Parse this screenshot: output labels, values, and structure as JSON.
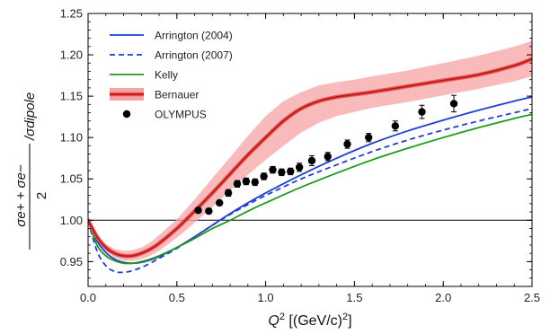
{
  "chart_data": {
    "type": "line",
    "xlabel_main": "Q",
    "xlabel_sup": "2",
    "xlabel_unit": " [(GeV/c)",
    "xlabel_unit_sup": "2",
    "xlabel_close": "]",
    "ylabel_numerator": "σe+ + σe−",
    "ylabel_denominator": "2",
    "ylabel_divisor": "/σdipole",
    "xlim": [
      0,
      2.5
    ],
    "ylim": [
      0.92,
      1.25
    ],
    "x_ticks": [
      "0.0",
      "0.5",
      "1.0",
      "1.5",
      "2.0",
      "2.5"
    ],
    "x_tick_values": [
      0,
      0.5,
      1.0,
      1.5,
      2.0,
      2.5
    ],
    "y_ticks": [
      "0.95",
      "1.00",
      "1.05",
      "1.10",
      "1.15",
      "1.20",
      "1.25"
    ],
    "y_tick_values": [
      0.95,
      1.0,
      1.05,
      1.1,
      1.15,
      1.2,
      1.25
    ],
    "reference_line": 1.0,
    "legend_position": "top-left",
    "series": [
      {
        "name": "Arrington (2004)",
        "color": "#1d3fd6",
        "style": "solid",
        "x": [
          0,
          0.05,
          0.1,
          0.15,
          0.2,
          0.25,
          0.3,
          0.35,
          0.4,
          0.5,
          0.6,
          0.7,
          0.8,
          0.9,
          1.0,
          1.2,
          1.4,
          1.6,
          1.8,
          2.0,
          2.2,
          2.4,
          2.5
        ],
        "values": [
          1.0,
          0.975,
          0.961,
          0.953,
          0.949,
          0.948,
          0.949,
          0.952,
          0.956,
          0.967,
          0.98,
          0.994,
          1.008,
          1.021,
          1.033,
          1.055,
          1.075,
          1.093,
          1.108,
          1.121,
          1.133,
          1.144,
          1.149
        ]
      },
      {
        "name": "Arrington (2007)",
        "color": "#1d3fd6",
        "style": "dashed",
        "x": [
          0,
          0.05,
          0.1,
          0.15,
          0.2,
          0.25,
          0.3,
          0.35,
          0.4,
          0.5,
          0.6,
          0.7,
          0.8,
          0.9,
          1.0,
          1.2,
          1.4,
          1.6,
          1.8,
          2.0,
          2.2,
          2.4,
          2.5
        ],
        "values": [
          1.0,
          0.963,
          0.945,
          0.938,
          0.937,
          0.939,
          0.943,
          0.948,
          0.954,
          0.966,
          0.98,
          0.994,
          1.007,
          1.019,
          1.03,
          1.05,
          1.067,
          1.083,
          1.097,
          1.109,
          1.12,
          1.13,
          1.135
        ]
      },
      {
        "name": "Kelly",
        "color": "#1f9a1f",
        "style": "solid",
        "x": [
          0,
          0.05,
          0.1,
          0.15,
          0.2,
          0.25,
          0.3,
          0.35,
          0.4,
          0.5,
          0.6,
          0.7,
          0.8,
          0.9,
          1.0,
          1.2,
          1.4,
          1.6,
          1.8,
          2.0,
          2.2,
          2.4,
          2.5
        ],
        "values": [
          1.0,
          0.97,
          0.957,
          0.951,
          0.948,
          0.948,
          0.95,
          0.953,
          0.957,
          0.967,
          0.978,
          0.99,
          1.0,
          1.011,
          1.021,
          1.04,
          1.057,
          1.073,
          1.087,
          1.1,
          1.112,
          1.123,
          1.128
        ]
      },
      {
        "name": "Bernauer",
        "color": "#c81414",
        "band_color": "#f6a3a3",
        "core_color": "#e05a5a",
        "style": "band",
        "x": [
          0,
          0.05,
          0.1,
          0.15,
          0.2,
          0.25,
          0.3,
          0.35,
          0.4,
          0.5,
          0.6,
          0.7,
          0.8,
          0.9,
          1.0,
          1.1,
          1.2,
          1.3,
          1.4,
          1.5,
          1.6,
          1.8,
          2.0,
          2.2,
          2.4,
          2.5
        ],
        "values": [
          1.0,
          0.98,
          0.967,
          0.96,
          0.957,
          0.957,
          0.96,
          0.965,
          0.972,
          0.99,
          1.011,
          1.033,
          1.056,
          1.079,
          1.1,
          1.12,
          1.135,
          1.144,
          1.149,
          1.152,
          1.155,
          1.162,
          1.169,
          1.176,
          1.187,
          1.195
        ],
        "band_low": [
          1.0,
          0.977,
          0.963,
          0.955,
          0.951,
          0.951,
          0.953,
          0.957,
          0.963,
          0.979,
          0.997,
          1.016,
          1.036,
          1.055,
          1.073,
          1.09,
          1.106,
          1.118,
          1.126,
          1.131,
          1.136,
          1.143,
          1.151,
          1.159,
          1.168,
          1.174
        ],
        "band_high": [
          1.0,
          0.983,
          0.971,
          0.965,
          0.963,
          0.964,
          0.967,
          0.973,
          0.982,
          1.001,
          1.025,
          1.051,
          1.076,
          1.102,
          1.126,
          1.144,
          1.155,
          1.163,
          1.167,
          1.17,
          1.174,
          1.181,
          1.19,
          1.199,
          1.21,
          1.217
        ]
      },
      {
        "name": "OLYMPUS",
        "color": "#000000",
        "style": "points",
        "x": [
          0.62,
          0.68,
          0.74,
          0.79,
          0.84,
          0.89,
          0.94,
          0.99,
          1.04,
          1.09,
          1.14,
          1.19,
          1.26,
          1.35,
          1.46,
          1.58,
          1.73,
          1.88,
          2.06
        ],
        "values": [
          1.012,
          1.011,
          1.021,
          1.033,
          1.044,
          1.047,
          1.046,
          1.053,
          1.061,
          1.058,
          1.059,
          1.064,
          1.072,
          1.077,
          1.092,
          1.1,
          1.114,
          1.131,
          1.141
        ],
        "errors": [
          0.003,
          0.003,
          0.003,
          0.004,
          0.004,
          0.004,
          0.004,
          0.004,
          0.004,
          0.004,
          0.004,
          0.005,
          0.006,
          0.005,
          0.005,
          0.005,
          0.006,
          0.008,
          0.01
        ]
      }
    ]
  }
}
